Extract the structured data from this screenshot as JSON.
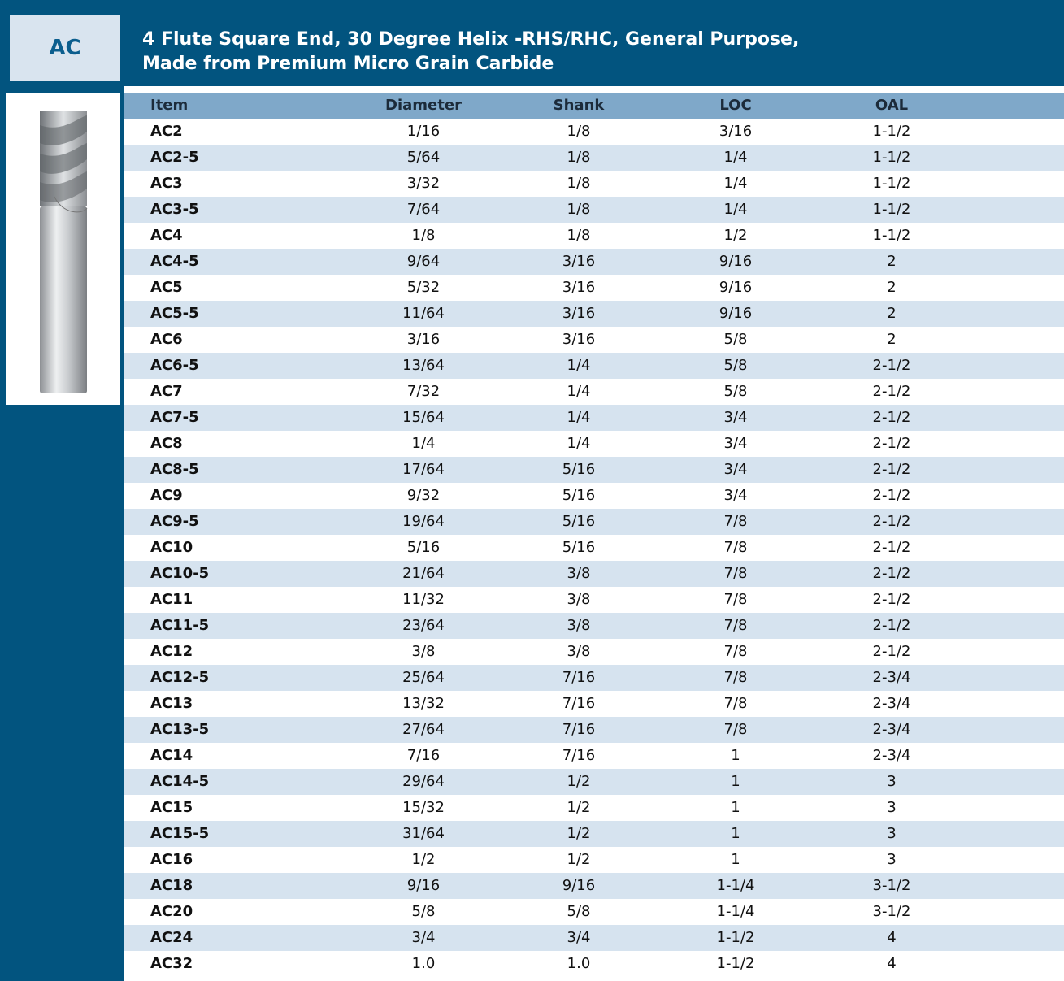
{
  "header": {
    "code": "AC",
    "title_lines": [
      "4 Flute Square End, 30 Degree Helix -RHS/RHC, General Purpose,",
      "Made from Premium Micro Grain Carbide"
    ]
  },
  "table": {
    "columns": [
      "Item",
      "Diameter",
      "Shank",
      "LOC",
      "OAL"
    ],
    "rows": [
      [
        "AC2",
        "1/16",
        "1/8",
        "3/16",
        "1-1/2"
      ],
      [
        "AC2-5",
        "5/64",
        "1/8",
        "1/4",
        "1-1/2"
      ],
      [
        "AC3",
        "3/32",
        "1/8",
        "1/4",
        "1-1/2"
      ],
      [
        "AC3-5",
        "7/64",
        "1/8",
        "1/4",
        "1-1/2"
      ],
      [
        "AC4",
        "1/8",
        "1/8",
        "1/2",
        "1-1/2"
      ],
      [
        "AC4-5",
        "9/64",
        "3/16",
        "9/16",
        "2"
      ],
      [
        "AC5",
        "5/32",
        "3/16",
        "9/16",
        "2"
      ],
      [
        "AC5-5",
        "11/64",
        "3/16",
        "9/16",
        "2"
      ],
      [
        "AC6",
        "3/16",
        "3/16",
        "5/8",
        "2"
      ],
      [
        "AC6-5",
        "13/64",
        "1/4",
        "5/8",
        "2-1/2"
      ],
      [
        "AC7",
        "7/32",
        "1/4",
        "5/8",
        "2-1/2"
      ],
      [
        "AC7-5",
        "15/64",
        "1/4",
        "3/4",
        "2-1/2"
      ],
      [
        "AC8",
        "1/4",
        "1/4",
        "3/4",
        "2-1/2"
      ],
      [
        "AC8-5",
        "17/64",
        "5/16",
        "3/4",
        "2-1/2"
      ],
      [
        "AC9",
        "9/32",
        "5/16",
        "3/4",
        "2-1/2"
      ],
      [
        "AC9-5",
        "19/64",
        "5/16",
        "7/8",
        "2-1/2"
      ],
      [
        "AC10",
        "5/16",
        "5/16",
        "7/8",
        "2-1/2"
      ],
      [
        "AC10-5",
        "21/64",
        "3/8",
        "7/8",
        "2-1/2"
      ],
      [
        "AC11",
        "11/32",
        "3/8",
        "7/8",
        "2-1/2"
      ],
      [
        "AC11-5",
        "23/64",
        "3/8",
        "7/8",
        "2-1/2"
      ],
      [
        "AC12",
        "3/8",
        "3/8",
        "7/8",
        "2-1/2"
      ],
      [
        "AC12-5",
        "25/64",
        "7/16",
        "7/8",
        "2-3/4"
      ],
      [
        "AC13",
        "13/32",
        "7/16",
        "7/8",
        "2-3/4"
      ],
      [
        "AC13-5",
        "27/64",
        "7/16",
        "7/8",
        "2-3/4"
      ],
      [
        "AC14",
        "7/16",
        "7/16",
        "1",
        "2-3/4"
      ],
      [
        "AC14-5",
        "29/64",
        "1/2",
        "1",
        "3"
      ],
      [
        "AC15",
        "15/32",
        "1/2",
        "1",
        "3"
      ],
      [
        "AC15-5",
        "31/64",
        "1/2",
        "1",
        "3"
      ],
      [
        "AC16",
        "1/2",
        "1/2",
        "1",
        "3"
      ],
      [
        "AC18",
        "9/16",
        "9/16",
        "1-1/4",
        "3-1/2"
      ],
      [
        "AC20",
        "5/8",
        "5/8",
        "1-1/4",
        "3-1/2"
      ],
      [
        "AC24",
        "3/4",
        "3/4",
        "1-1/2",
        "4"
      ],
      [
        "AC32",
        "1.0",
        "1.0",
        "1-1/2",
        "4"
      ]
    ]
  }
}
